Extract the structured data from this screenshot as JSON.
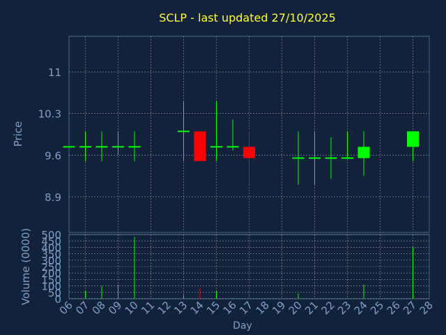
{
  "colors": {
    "background": "#11223a",
    "axis_text": "#7fa0c8",
    "title": "#ffff33",
    "up": "#00ff00",
    "down": "#ff0000",
    "grid": "#ffffff",
    "frame": "#4a6a8a"
  },
  "chart_data": {
    "type": "candlestick",
    "title": "SCLP - last updated 27/10/2025",
    "xlabel": "Day",
    "ylabel": "Price",
    "volume_ylabel": "Volume (0000)",
    "grid": true,
    "x_ticks": [
      "06",
      "07",
      "08",
      "09",
      "10",
      "11",
      "12",
      "13",
      "14",
      "15",
      "16",
      "17",
      "18",
      "19",
      "20",
      "21",
      "22",
      "23",
      "24",
      "25",
      "26",
      "27",
      "28"
    ],
    "price_ticks": [
      "11",
      "10.3",
      "9.6",
      "8.9"
    ],
    "price_tick_values": [
      11.0,
      10.3,
      9.6,
      8.9
    ],
    "price_range": [
      8.3,
      11.6
    ],
    "volume_ticks": [
      "0",
      "50",
      "100",
      "150",
      "200",
      "250",
      "300",
      "350",
      "400",
      "450",
      "500"
    ],
    "volume_range": [
      0,
      500
    ],
    "candles": [
      {
        "day": 6,
        "open": 9.74,
        "high": 9.74,
        "low": 9.74,
        "close": 9.74,
        "volume": 0
      },
      {
        "day": 7,
        "open": 9.74,
        "high": 10.0,
        "low": 9.5,
        "close": 9.74,
        "volume": 60
      },
      {
        "day": 8,
        "open": 9.74,
        "high": 10.0,
        "low": 9.5,
        "close": 9.74,
        "volume": 100
      },
      {
        "day": 9,
        "open": 9.74,
        "high": 10.0,
        "low": 9.6,
        "close": 9.74,
        "volume": 110
      },
      {
        "day": 10,
        "open": 9.74,
        "high": 10.0,
        "low": 9.5,
        "close": 9.74,
        "volume": 480
      },
      {
        "day": 13,
        "open": 10.0,
        "high": 10.5,
        "low": 9.5,
        "close": 10.0,
        "volume": 30
      },
      {
        "day": 14,
        "open": 10.0,
        "high": 10.0,
        "low": 9.5,
        "close": 9.5,
        "volume": 80
      },
      {
        "day": 15,
        "open": 9.74,
        "high": 10.5,
        "low": 9.5,
        "close": 9.74,
        "volume": 60
      },
      {
        "day": 16,
        "open": 9.74,
        "high": 10.2,
        "low": 9.68,
        "close": 9.74,
        "volume": 5
      },
      {
        "day": 17,
        "open": 9.74,
        "high": 10.0,
        "low": 9.1,
        "close": 9.55,
        "volume": 50
      },
      {
        "day": 20,
        "open": 9.55,
        "high": 10.0,
        "low": 9.1,
        "close": 9.55,
        "volume": 40
      },
      {
        "day": 21,
        "open": 9.55,
        "high": 10.0,
        "low": 9.1,
        "close": 9.55,
        "volume": 3
      },
      {
        "day": 22,
        "open": 9.55,
        "high": 9.9,
        "low": 9.2,
        "close": 9.55,
        "volume": 3
      },
      {
        "day": 23,
        "open": 9.55,
        "high": 10.0,
        "low": 9.55,
        "close": 9.55,
        "volume": 2
      },
      {
        "day": 24,
        "open": 9.55,
        "high": 10.0,
        "low": 9.25,
        "close": 9.74,
        "volume": 110
      },
      {
        "day": 27,
        "open": 9.74,
        "high": 10.0,
        "low": 9.5,
        "close": 10.0,
        "volume": 400
      }
    ]
  }
}
